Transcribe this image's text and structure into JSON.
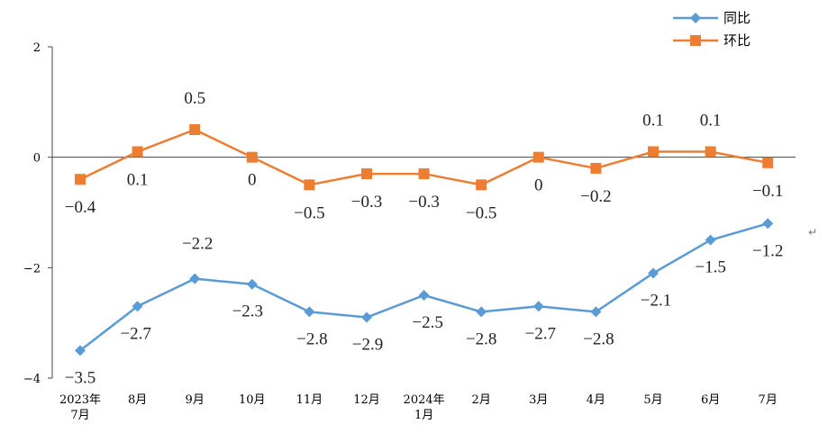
{
  "chart_data": {
    "type": "line",
    "categories": [
      "2023年\n7月",
      "8月",
      "9月",
      "10月",
      "11月",
      "12月",
      "2024年\n1月",
      "2月",
      "3月",
      "4月",
      "5月",
      "6月",
      "7月"
    ],
    "series": [
      {
        "name": "同比",
        "color": "#5B9BD5",
        "marker": "diamond",
        "values": [
          -3.5,
          -2.7,
          -2.2,
          -2.3,
          -2.8,
          -2.9,
          -2.5,
          -2.8,
          -2.7,
          -2.8,
          -2.1,
          -1.5,
          -1.2
        ],
        "labels": [
          "-3.5",
          "-2.7",
          "-2.2",
          "-2.3",
          "-2.8",
          "-2.9",
          "-2.5",
          "-2.8",
          "-2.7",
          "-2.8",
          "-2.1",
          "-1.5",
          "-1.2"
        ]
      },
      {
        "name": "环比",
        "color": "#ED7D31",
        "marker": "square",
        "values": [
          -0.4,
          0.1,
          0.5,
          0,
          -0.5,
          -0.3,
          -0.3,
          -0.5,
          0,
          -0.2,
          0.1,
          0.1,
          -0.1
        ],
        "labels": [
          "-0.4",
          "0.1",
          "0.5",
          "0",
          "-0.5",
          "-0.3",
          "-0.3",
          "-0.5",
          "0",
          "-0.2",
          "0.1",
          "0.1",
          "-0.1"
        ]
      }
    ],
    "y_ticks": [
      "2",
      "0",
      "-2",
      "-4"
    ],
    "ylim": [
      -4,
      2
    ],
    "grid": false,
    "legend": "top-right",
    "title": "",
    "xlabel": "",
    "ylabel": ""
  }
}
